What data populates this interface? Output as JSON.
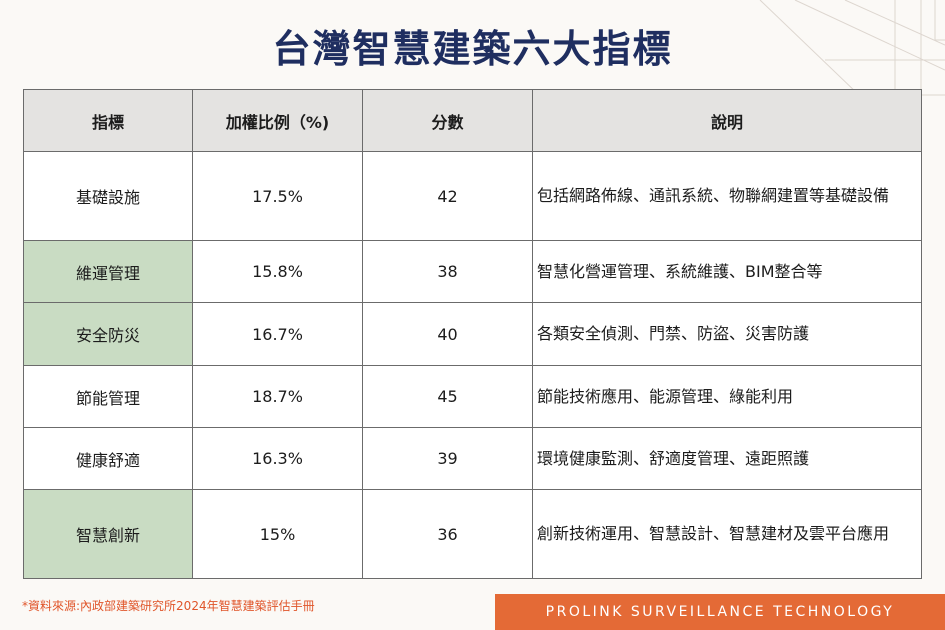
{
  "title": "台灣智慧建築六大指標",
  "table": {
    "headers": [
      "指標",
      "加權比例（%)",
      "分數",
      "說明"
    ],
    "rows": [
      {
        "indicator": "基礎設施",
        "weight": "17.5%",
        "score": "42",
        "description": "包括網路佈線、通訊系統、物聯網建置等基礎設備"
      },
      {
        "indicator": "維運管理",
        "weight": "15.8%",
        "score": "38",
        "description": "智慧化營運管理、系統維護、BIM整合等"
      },
      {
        "indicator": "安全防災",
        "weight": "16.7%",
        "score": "40",
        "description": "各類安全偵測、門禁、防盜、災害防護"
      },
      {
        "indicator": "節能管理",
        "weight": "18.7%",
        "score": "45",
        "description": "節能技術應用、能源管理、綠能利用"
      },
      {
        "indicator": "健康舒適",
        "weight": "16.3%",
        "score": "39",
        "description": "環境健康監測、舒適度管理、遠距照護"
      },
      {
        "indicator": "智慧創新",
        "weight": "15%",
        "score": "36",
        "description": "創新技術運用、智慧設計、智慧建材及雲平台應用"
      }
    ]
  },
  "footnote": "*資料來源:內政部建築研究所2024年智慧建築評估手冊",
  "brand": "PROLINK SURVEILLANCE TECHNOLOGY",
  "colors": {
    "title": "#1f2e60",
    "header_bg": "#e4e3e1",
    "highlight": "#c9dcc3",
    "accent": "#e46a36",
    "footnote": "#e0552a"
  }
}
